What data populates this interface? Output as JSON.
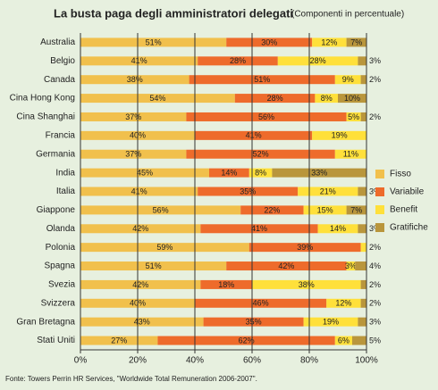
{
  "chart_data": {
    "type": "stacked-barh",
    "title": "La busta paga degli amministratori delegati",
    "subtitle": "(Componenti in percentuale)",
    "source": "Fonte: Towers Perrin HR Services, \"Worldwide Total Remuneration 2006-2007\".",
    "categories": [
      "Australia",
      "Belgio",
      "Canada",
      "Cina Hong Kong",
      "Cina Shanghai",
      "Francia",
      "Germania",
      "India",
      "Italia",
      "Giappone",
      "Olanda",
      "Polonia",
      "Spagna",
      "Svezia",
      "Svizzera",
      "Gran Bretagna",
      "Stati Uniti"
    ],
    "series": [
      {
        "name": "Fisso",
        "color": "#f1c04c",
        "values": [
          51,
          41,
          38,
          54,
          37,
          40,
          37,
          45,
          41,
          56,
          42,
          59,
          51,
          42,
          40,
          43,
          27
        ],
        "value_labels": [
          "51%",
          "41%",
          "38%",
          "54%",
          "37%",
          "40%",
          "37%",
          "45%",
          "41%",
          "56%",
          "42%",
          "59%",
          "51%",
          "42%",
          "40%",
          "43%",
          "27%"
        ]
      },
      {
        "name": "Variabile",
        "color": "#ee6b2b",
        "values": [
          30,
          28,
          51,
          28,
          56,
          41,
          52,
          14,
          35,
          22,
          41,
          39,
          42,
          18,
          46,
          35,
          62
        ],
        "value_labels": [
          "30%",
          "28%",
          "51%",
          "28%",
          "56%",
          "41%",
          "52%",
          "14%",
          "35%",
          "22%",
          "41%",
          "39%",
          "42%",
          "18%",
          "46%",
          "35%",
          "62%"
        ]
      },
      {
        "name": "Benefit",
        "color": "#ffe03a",
        "values": [
          12,
          28,
          9,
          8,
          5,
          19,
          11,
          8,
          21,
          15,
          14,
          2,
          3,
          38,
          12,
          19,
          6
        ],
        "value_labels": [
          "12%",
          "28%",
          "9%",
          "8%",
          "5%",
          "19%",
          "11%",
          "8%",
          "21%",
          "15%",
          "14%",
          "2%",
          "3%",
          "38%",
          "12%",
          "19%",
          "6%"
        ]
      },
      {
        "name": "Gratifiche",
        "color": "#b9963c",
        "values": [
          7,
          3,
          2,
          10,
          2,
          null,
          null,
          33,
          3,
          7,
          3,
          null,
          4,
          2,
          2,
          3,
          5
        ],
        "value_labels": [
          "7%",
          "3%",
          "2%",
          "10%",
          "2%",
          null,
          null,
          "33%",
          "3%",
          "7%",
          "3%",
          null,
          "4%",
          "2%",
          "2%",
          "3%",
          "5%"
        ]
      }
    ],
    "xlim": [
      0,
      100
    ],
    "xticks": [
      {
        "value": 0,
        "label": "0%"
      },
      {
        "value": 20,
        "label": "20%"
      },
      {
        "value": 40,
        "label": "40%"
      },
      {
        "value": 60,
        "label": "60%"
      },
      {
        "value": 80,
        "label": "80%"
      },
      {
        "value": 100,
        "label": "100%"
      }
    ],
    "grid": true,
    "legend": "right"
  }
}
